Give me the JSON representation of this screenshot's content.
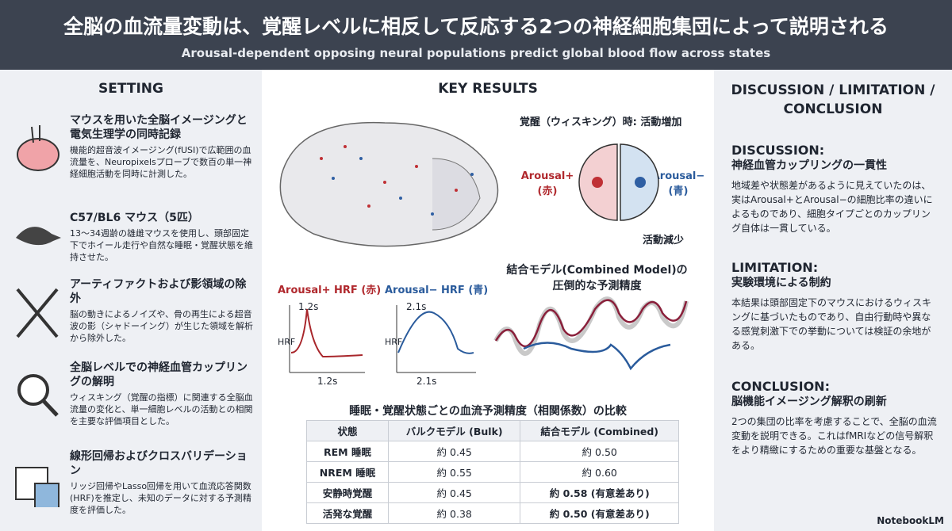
{
  "header": {
    "title": "全脳の血流量変動は、覚醒レベルに相反して反応する2つの神経細胞集団によって説明される",
    "subtitle": "Arousal-dependent opposing neural populations predict global blood flow across states"
  },
  "setting": {
    "heading": "SETTING",
    "items": [
      {
        "title": "マウスを用いた全脳イメージングと電気生理学の同時記録",
        "text": "機能的超音波イメージング(fUSI)で広範囲の血流量を、Neuropixelsプローブで数百の単一神経細胞活動を同時に計測した。"
      },
      {
        "title": "C57/BL6 マウス（5匹）",
        "text": "13〜34週齢の雄雌マウスを使用し、頭部固定下でホイール走行や自然な睡眠・覚醒状態を維持させた。"
      },
      {
        "title": "アーティファクトおよび影領域の除外",
        "text": "脳の動きによるノイズや、骨の再生による超音波の影（シャドーイング）が生じた領域を解析から除外した。"
      },
      {
        "title": "全脳レベルでの神経血管カップリングの解明",
        "text": "ウィスキング（覚醒の指標）に関連する全脳血流量の変化と、単一細胞レベルの活動との相関を主要な評価項目とした。"
      },
      {
        "title": "線形回帰およびクロスバリデーション",
        "text": "リッジ回帰やLasso回帰を用いて血流応答関数(HRF)を推定し、未知のデータに対する予測精度を評価した。"
      }
    ]
  },
  "results": {
    "heading": "KEY RESULTS",
    "arousal_up": "覚醒（ウィスキング）時: 活動増加",
    "pos_label": "Arousal+\n(赤)",
    "neg_label": "Arousal−\n(青)",
    "arousal_down": "活動減少",
    "hrf": [
      {
        "title": "Arousal+ HRF (赤)",
        "peak": "1.2s",
        "ylabel": "HRF",
        "xlabel": "1.2s"
      },
      {
        "title": "Arousal− HRF (青)",
        "peak": "2.1s",
        "ylabel": "HRF",
        "xlabel": "2.1s"
      }
    ],
    "combined_title": "結合モデル(Combined Model)の\n圧倒的な予測精度"
  },
  "table": {
    "title": "睡眠・覚醒状態ごとの血流予測精度（相関係数）の比較",
    "headers": [
      "状態",
      "バルクモデル (Bulk)",
      "結合モデル (Combined)"
    ],
    "rows": [
      [
        "REM 睡眠",
        "約 0.45",
        "約 0.50"
      ],
      [
        "NREM 睡眠",
        "約 0.55",
        "約 0.60"
      ],
      [
        "安静時覚醒",
        "約 0.45",
        "約 0.58 (有意差あり)"
      ],
      [
        "活発な覚醒",
        "約 0.38",
        "約 0.50 (有意差あり)"
      ]
    ]
  },
  "discussion": {
    "heading": "DISCUSSION / LIMITATION / CONCLUSION",
    "sections": [
      {
        "label": "DISCUSSION:",
        "subtitle": "神経血管カップリングの一貫性",
        "text": "地域差や状態差があるように見えていたのは、実はArousal+とArousal−の細胞比率の違いによるものであり、細胞タイプごとのカップリング自体は一貫している。"
      },
      {
        "label": "LIMITATION:",
        "subtitle": "実験環境による制約",
        "text": "本結果は頭部固定下のマウスにおけるウィスキングに基づいたものであり、自由行動時や異なる感覚刺激下での挙動については検証の余地がある。"
      },
      {
        "label": "CONCLUSION:",
        "subtitle": "脳機能イメージング解釈の刷新",
        "text": "2つの集団の比率を考慮することで、全脳の血流変動を説明できる。これはfMRIなどの信号解釈をより精緻にするための重要な基盤となる。"
      }
    ]
  },
  "footer": "NotebookLM"
}
